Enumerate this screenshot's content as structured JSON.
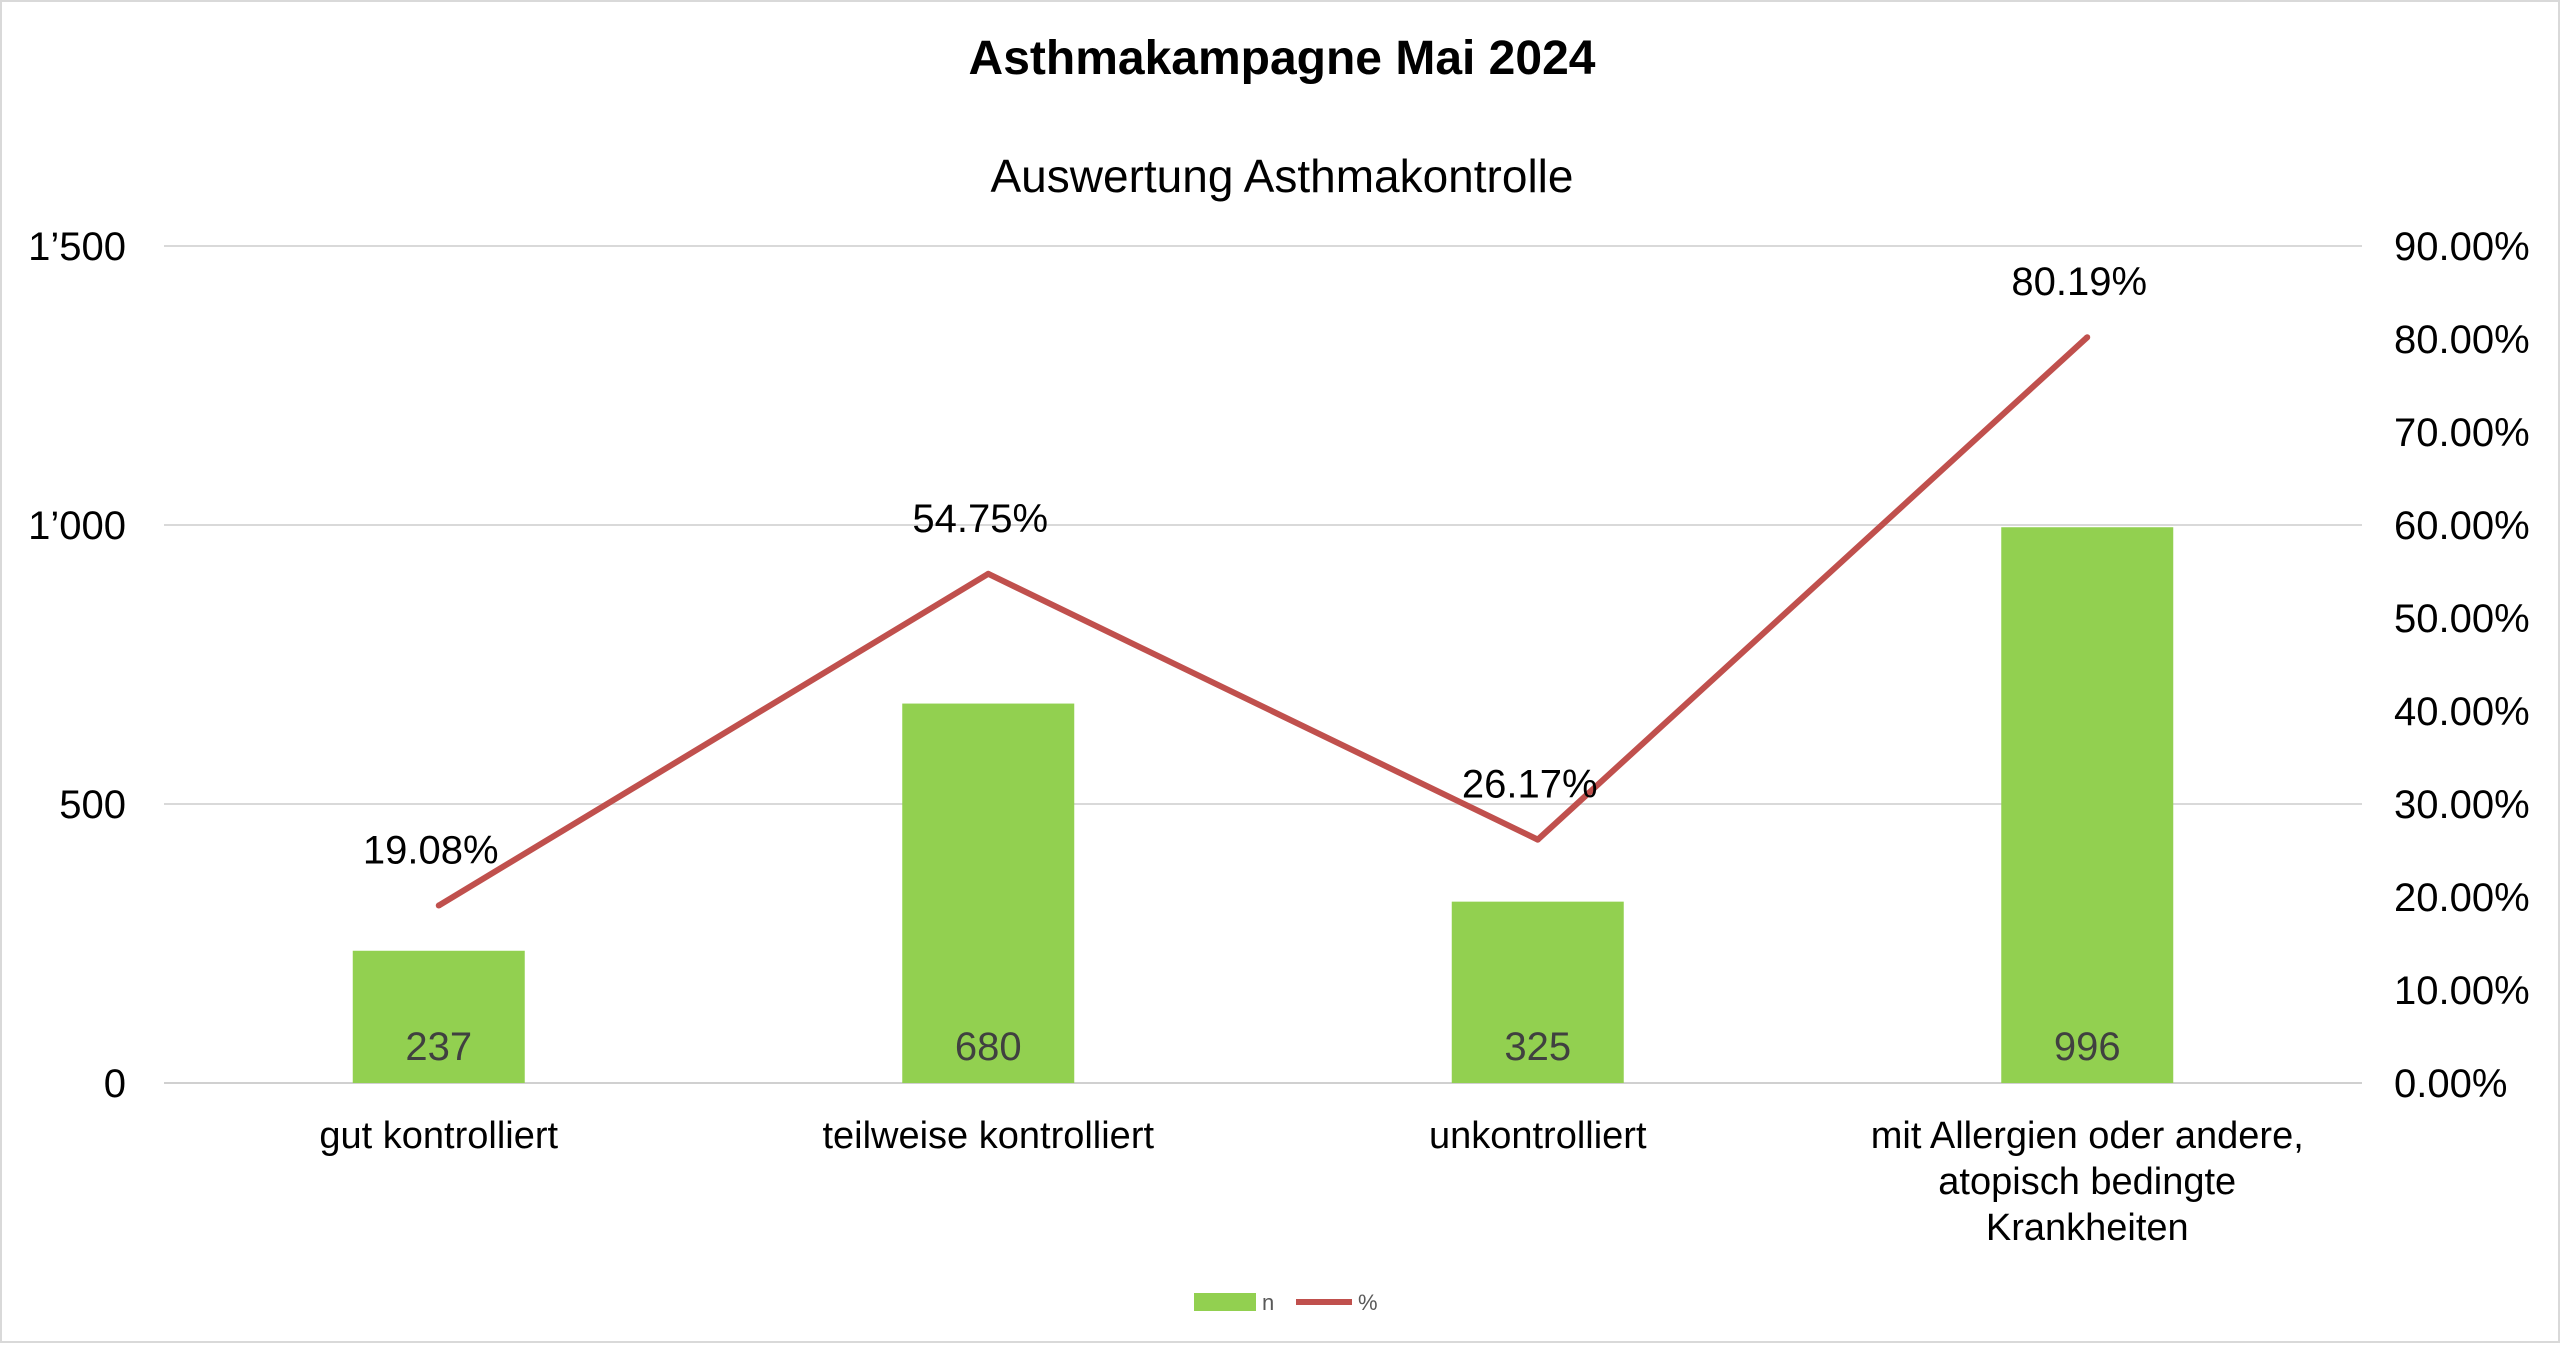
{
  "chart_data": {
    "type": "bar",
    "title": "Asthmakampagne Mai 2024",
    "subtitle": "Auswertung Asthmakontrolle",
    "categories": [
      [
        "gut kontrolliert"
      ],
      [
        "teilweise kontrolliert"
      ],
      [
        "unkontrolliert"
      ],
      [
        "mit Allergien oder andere,",
        "atopisch bedingte",
        "Krankheiten"
      ]
    ],
    "series": [
      {
        "name": "n",
        "type": "bar",
        "axis": "left",
        "color": "#92d050",
        "values": [
          237,
          680,
          325,
          996
        ],
        "labels": [
          "237",
          "680",
          "325",
          "996"
        ]
      },
      {
        "name": "%",
        "type": "line",
        "axis": "right",
        "color": "#c0504d",
        "values": [
          19.08,
          54.75,
          26.17,
          80.19
        ],
        "labels": [
          "19.08%",
          "54.75%",
          "26.17%",
          "80.19%"
        ]
      }
    ],
    "y_left": {
      "min": 0,
      "max": 1500,
      "ticks": [
        0,
        500,
        1000,
        1500
      ],
      "tick_labels": [
        "0",
        "500",
        "1’000",
        "1’500"
      ]
    },
    "y_right": {
      "min": 0,
      "max": 90,
      "ticks": [
        0,
        10,
        20,
        30,
        40,
        50,
        60,
        70,
        80,
        90
      ],
      "tick_labels": [
        "0.00%",
        "10.00%",
        "20.00%",
        "30.00%",
        "40.00%",
        "50.00%",
        "60.00%",
        "70.00%",
        "80.00%",
        "90.00%"
      ]
    },
    "grid": true,
    "legend": "bottom"
  }
}
